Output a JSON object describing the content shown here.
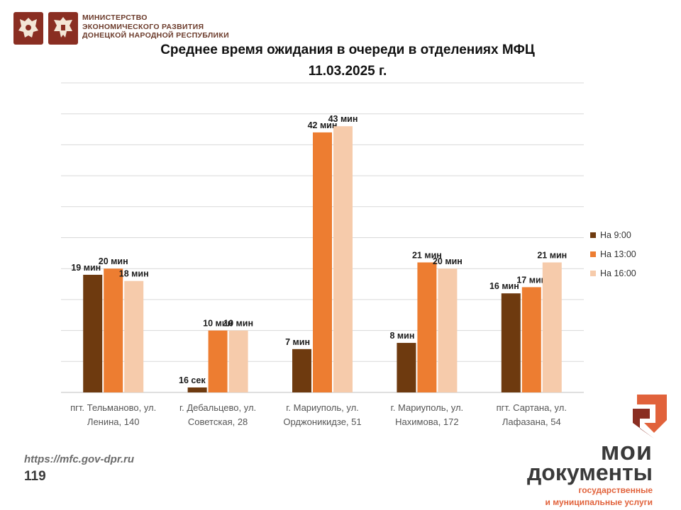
{
  "header": {
    "ministry_lines": [
      "МИНИСТЕРСТВО",
      "ЭКОНОМИЧЕСКОГО РАЗВИТИЯ",
      "ДОНЕЦКОЙ НАРОДНОЙ РЕСПУБЛИКИ"
    ],
    "emblems": [
      "russia-coat-of-arms-icon",
      "dpr-coat-of-arms-icon"
    ]
  },
  "chart_data": {
    "type": "bar",
    "title_line1": "Среднее время ожидания в очереди в отделениях МФЦ",
    "title_line2": "11.03.2025  г.",
    "categories": [
      [
        "пгт. Тельманово,  ул.",
        "Ленина, 140"
      ],
      [
        "г. Дебальцево, ул.",
        "Советская, 28"
      ],
      [
        "г. Мариуполь, ул.",
        "Орджоникидзе, 51"
      ],
      [
        "г. Мариуполь, ул.",
        "Нахимова, 172"
      ],
      [
        "пгт. Сартана, ул.",
        "Лафазана, 54"
      ]
    ],
    "series": [
      {
        "name": "На 9:00",
        "color": "#6e3a0f",
        "values": [
          19,
          0.27,
          7,
          8,
          16
        ],
        "labels": [
          "19 мин",
          "16 сек",
          "7 мин",
          "8 мин",
          "16 мин"
        ]
      },
      {
        "name": "На 13:00",
        "color": "#ed7d31",
        "values": [
          20,
          10,
          42,
          21,
          17
        ],
        "labels": [
          "20 мин",
          "10 мин",
          "42 мин",
          "21 мин",
          "17 мин"
        ]
      },
      {
        "name": "На 16:00",
        "color": "#f6cbab",
        "values": [
          18,
          10,
          43,
          20,
          21
        ],
        "labels": [
          "18 мин",
          "10 мин",
          "43 мин",
          "20 мин",
          "21 мин"
        ]
      }
    ],
    "ylim": [
      0,
      50
    ],
    "grid": true,
    "legend_position": "right"
  },
  "footer": {
    "url": "https://mfc.gov-dpr.ru",
    "page_number": "119",
    "brand_line1": "мои",
    "brand_line2": "документы",
    "brand_sub_line1": "государственные",
    "brand_sub_line2": "и муниципальные услуги"
  }
}
